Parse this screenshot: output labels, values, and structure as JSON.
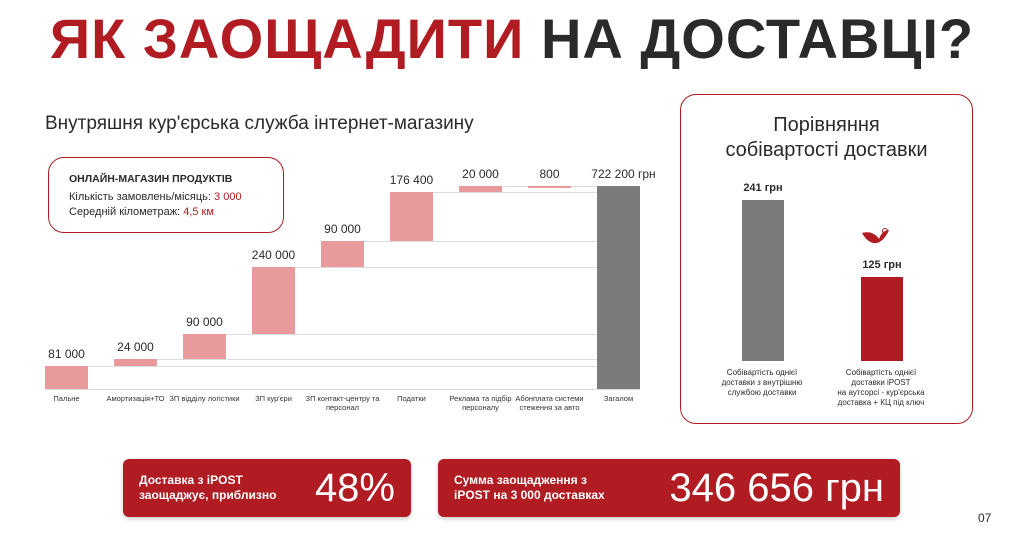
{
  "title": {
    "part1": "ЯК ЗАОЩАДИТИ",
    "part2": "НА ДОСТАВЦІ?"
  },
  "subtitle": "Внутряшня кур'єрська служба інтернет-магазину",
  "info_box": {
    "heading": "ОНЛАЙН-МАГАЗИН ПРОДУКТІВ",
    "orders_label": "Кількість замовлень/місяць:",
    "orders_value": "3 000",
    "distance_label": "Середній кілометраж:",
    "distance_value": "4,5 км"
  },
  "chart_data": [
    {
      "type": "waterfall",
      "title": "Внутряшня кур'єрська служба інтернет-магазину",
      "categories": [
        "Пальне",
        "Амортизація+ТО",
        "ЗП відділу логістики",
        "ЗП кур'єри",
        "ЗП контакт-центру та персонал",
        "Податки",
        "Реклама та підбір персоналу",
        "Абонплата системи стеження за авто",
        "Загалом"
      ],
      "values": [
        81000,
        24000,
        90000,
        240000,
        90000,
        176400,
        20000,
        800,
        722200
      ],
      "labels": [
        "81 000",
        "24 000",
        "90 000",
        "240 000",
        "90 000",
        "176 400",
        "20 000",
        "800",
        "722 200 грн"
      ],
      "total_index": 8,
      "colors": {
        "step": "#e89a9c",
        "total": "#7b7b7b"
      }
    },
    {
      "type": "bar",
      "title": "Порівняння собівартості доставки",
      "categories": [
        "Собівартість однієї доставки з внутрішню службою доставки",
        "Собівартість однієї доставки iPOST на аутсорсі - кур'єрська доставка + КЦ під ключ"
      ],
      "values": [
        241,
        125
      ],
      "labels": [
        "241 грн",
        "125 грн"
      ],
      "colors": [
        "#7b7b7b",
        "#b01c22"
      ]
    }
  ],
  "panel": {
    "title_line1": "Порівняння",
    "title_line2": "собівартості доставки",
    "caption1": [
      "Собівартість однієї",
      "доставки з внутрішню",
      "службою доставки"
    ],
    "caption2": [
      "Собівартість однієї",
      "доставки iPOST",
      "на аутсорсі - кур'єрська",
      "доставка + КЦ під ключ"
    ],
    "logo_icon": "ipost-bird-icon"
  },
  "banners": [
    {
      "text_line1": "Доставка з iPOST",
      "text_line2": "заощаджує, приблизно",
      "value": "48%"
    },
    {
      "text_line1": "Сумма заощадження з",
      "text_line2": "iPOST на 3 000 доставках",
      "value": "346 656 грн"
    }
  ],
  "page_number": "07",
  "colors": {
    "accent": "#b01c22",
    "dark": "#2a2a2a"
  }
}
